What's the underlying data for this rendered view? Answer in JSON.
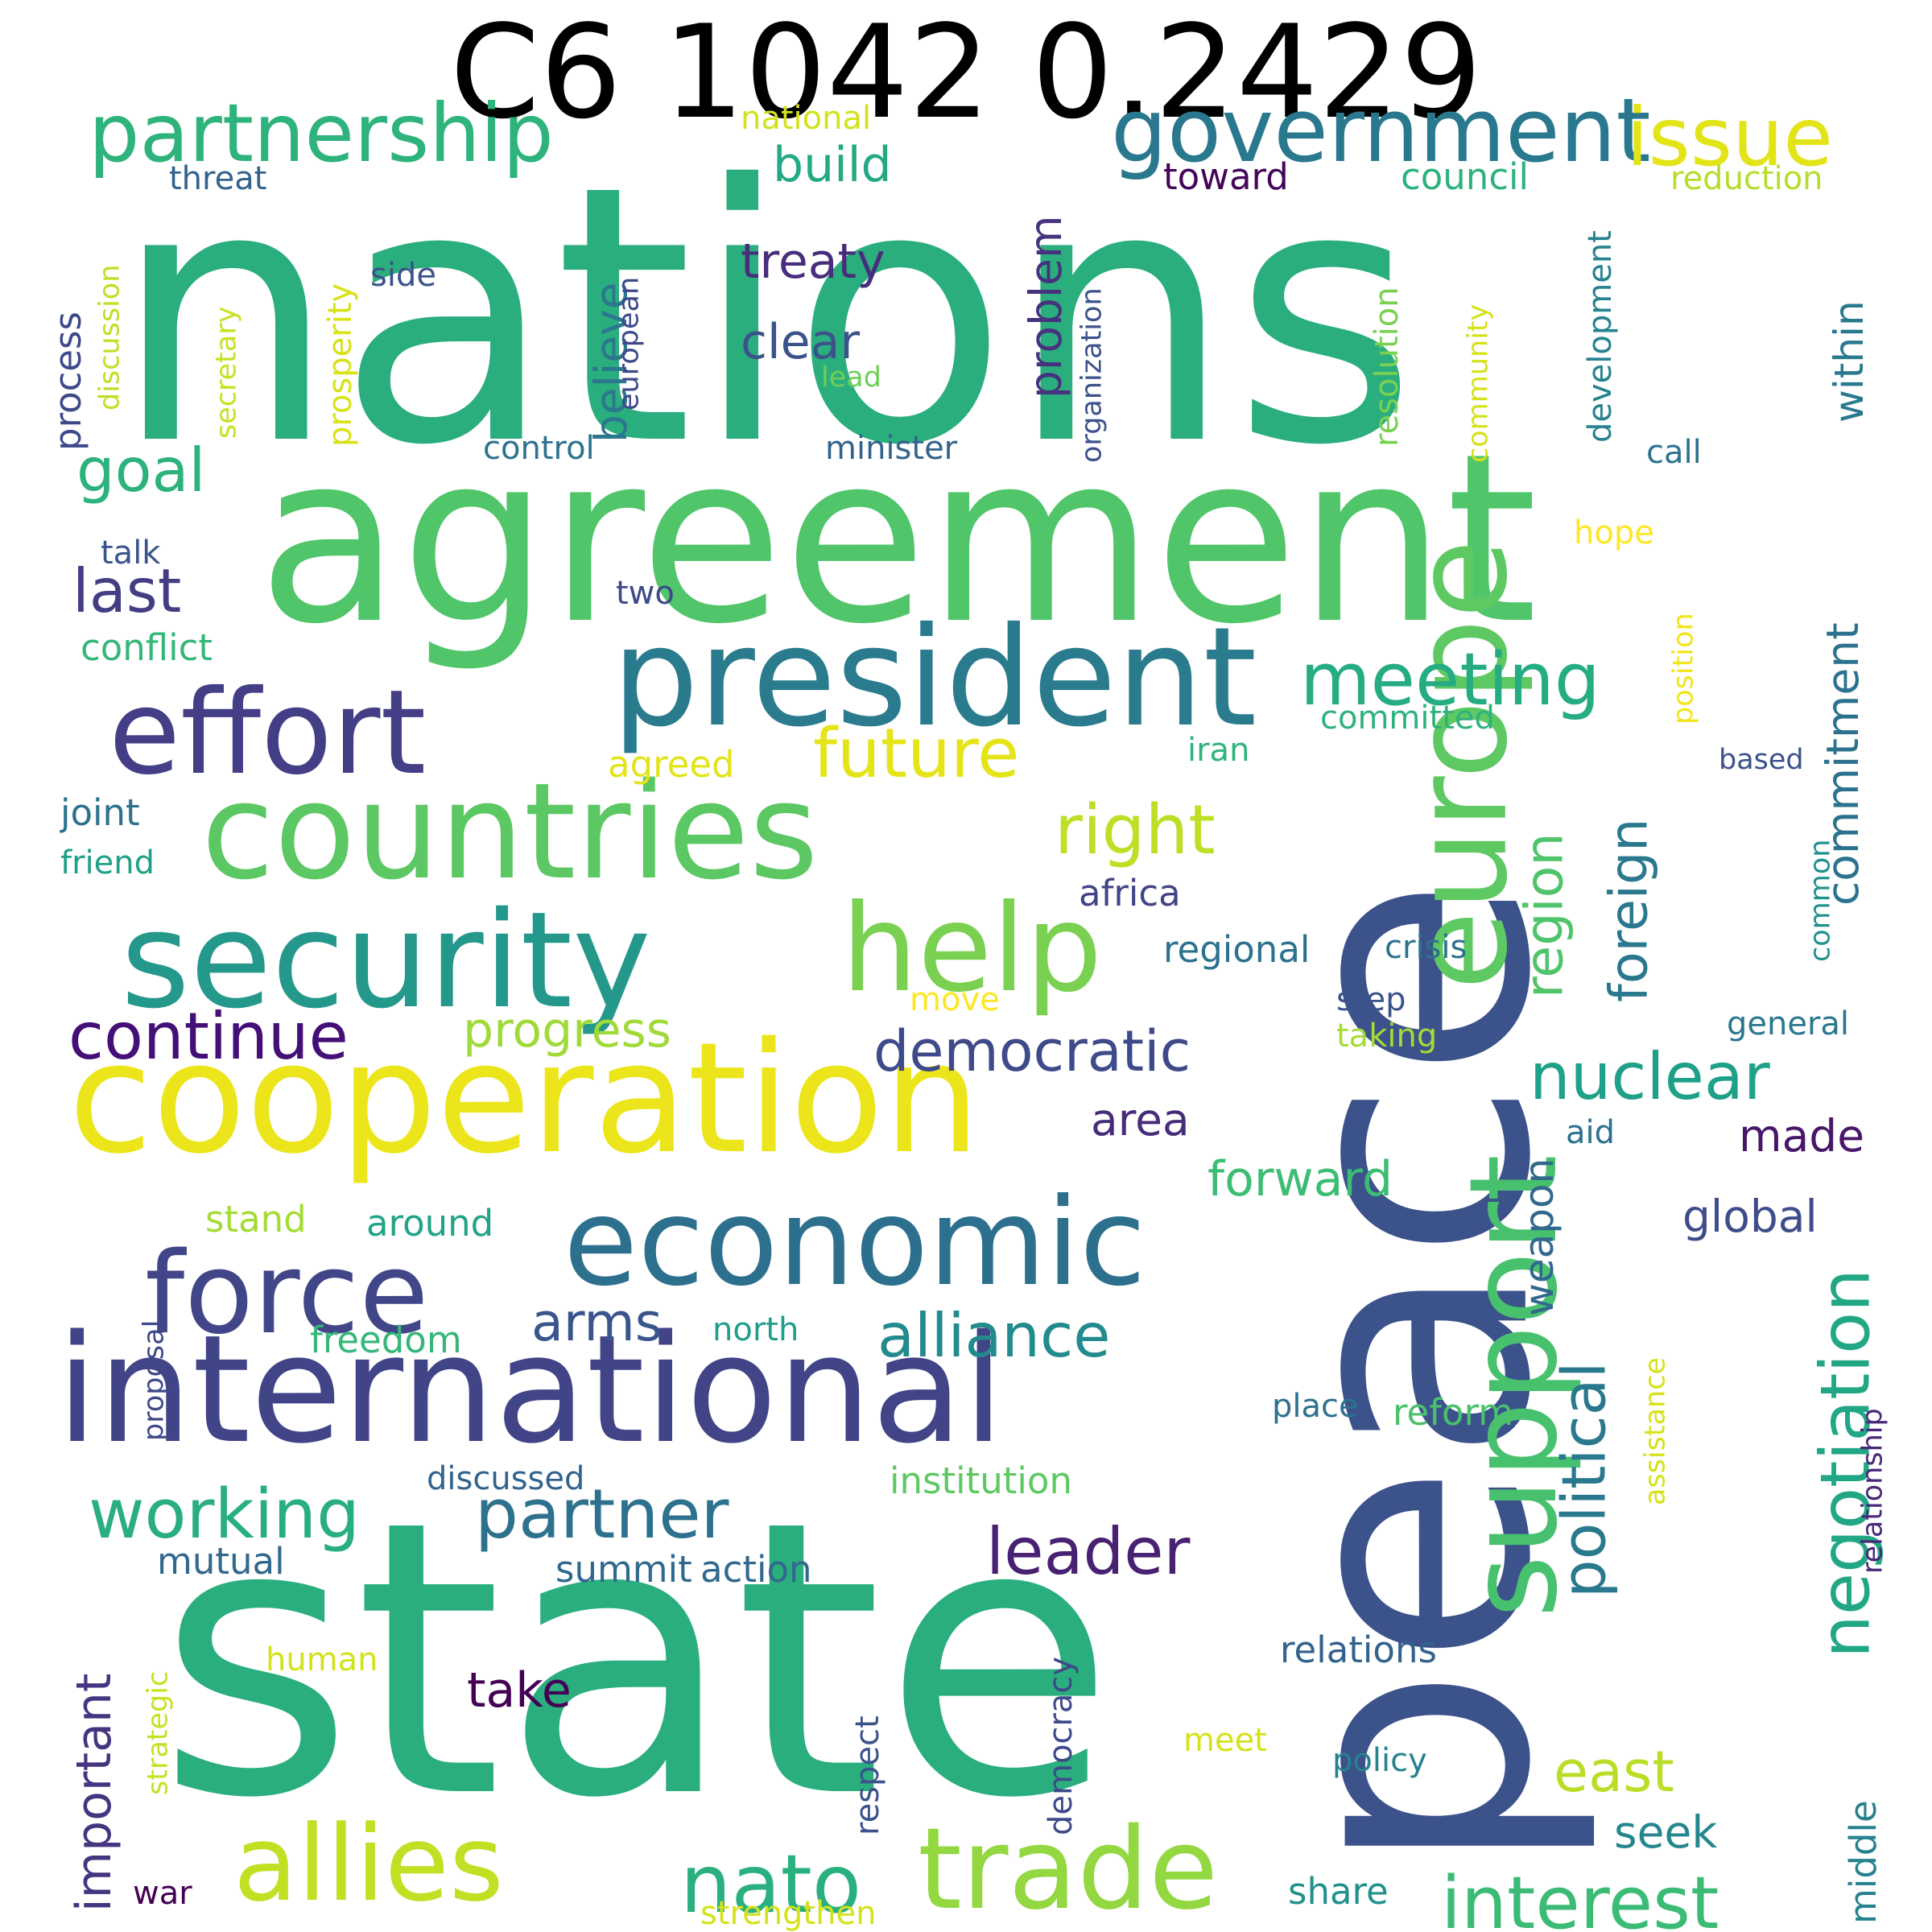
{
  "title": "C6 1042 0.2429",
  "palette": [
    "#440154",
    "#482878",
    "#3e4989",
    "#31688e",
    "#26828e",
    "#1f9e89",
    "#35b779",
    "#6ece58",
    "#b5de2b",
    "#fde725"
  ],
  "words": [
    {
      "text": "nations",
      "color": "#2aae7e"
    },
    {
      "text": "state",
      "color": "#2aae7e"
    },
    {
      "text": "peace",
      "color": "#3b528b"
    },
    {
      "text": "agreement",
      "color": "#51c56a"
    },
    {
      "text": "president",
      "color": "#2b7b8e"
    },
    {
      "text": "cooperation",
      "color": "#ede51b"
    },
    {
      "text": "international",
      "color": "#414487"
    },
    {
      "text": "countries",
      "color": "#5cc863"
    },
    {
      "text": "security",
      "color": "#24988a"
    },
    {
      "text": "effort",
      "color": "#433e85"
    },
    {
      "text": "economic",
      "color": "#2d708e"
    },
    {
      "text": "europe",
      "color": "#5ec962"
    },
    {
      "text": "support",
      "color": "#48c16e"
    },
    {
      "text": "help",
      "color": "#7ad151"
    },
    {
      "text": "force",
      "color": "#404688"
    },
    {
      "text": "trade",
      "color": "#93d741"
    },
    {
      "text": "allies",
      "color": "#c2df23"
    },
    {
      "text": "government",
      "color": "#2a788e"
    },
    {
      "text": "partnership",
      "color": "#2eb37c"
    },
    {
      "text": "issue",
      "color": "#e2e418"
    },
    {
      "text": "nato",
      "color": "#2ab07f"
    },
    {
      "text": "interest",
      "color": "#3bbb75"
    },
    {
      "text": "working",
      "color": "#28ae80"
    },
    {
      "text": "partner",
      "color": "#2d718e"
    },
    {
      "text": "meeting",
      "color": "#25ac82"
    },
    {
      "text": "future",
      "color": "#e5e419"
    },
    {
      "text": "right",
      "color": "#bddf26"
    },
    {
      "text": "leader",
      "color": "#482173"
    },
    {
      "text": "negotiation",
      "color": "#22a785"
    },
    {
      "text": "political",
      "color": "#2a788e"
    },
    {
      "text": "democratic",
      "color": "#3e4a89"
    },
    {
      "text": "continue",
      "color": "#440f76"
    },
    {
      "text": "nuclear",
      "color": "#1fa088"
    },
    {
      "text": "alliance",
      "color": "#238a8d"
    },
    {
      "text": "region",
      "color": "#50c46a"
    },
    {
      "text": "foreign",
      "color": "#2a788e"
    },
    {
      "text": "commitment",
      "color": "#2c728e"
    },
    {
      "text": "last",
      "color": "#433d84"
    },
    {
      "text": "goal",
      "color": "#2db27d"
    },
    {
      "text": "progress",
      "color": "#a0da39"
    },
    {
      "text": "forward",
      "color": "#3dbc74"
    },
    {
      "text": "arms",
      "color": "#39558c"
    },
    {
      "text": "east",
      "color": "#bade28"
    },
    {
      "text": "important",
      "color": "#453581"
    },
    {
      "text": "build",
      "color": "#23a983"
    },
    {
      "text": "treaty",
      "color": "#472d7b"
    },
    {
      "text": "clear",
      "color": "#3b528b"
    },
    {
      "text": "believe",
      "color": "#2a778e"
    },
    {
      "text": "problem",
      "color": "#46327e"
    },
    {
      "text": "within",
      "color": "#29798e"
    },
    {
      "text": "area",
      "color": "#472c7a"
    },
    {
      "text": "made",
      "color": "#481769"
    },
    {
      "text": "global",
      "color": "#3e4c8a"
    },
    {
      "text": "take",
      "color": "#440154"
    },
    {
      "text": "seek",
      "color": "#24878e"
    },
    {
      "text": "middle",
      "color": "#26828e"
    },
    {
      "text": "weapon",
      "color": "#31688e"
    },
    {
      "text": "process",
      "color": "#3e4989"
    },
    {
      "text": "prosperity",
      "color": "#d8e219"
    },
    {
      "text": "council",
      "color": "#2db27d"
    },
    {
      "text": "toward",
      "color": "#450559"
    },
    {
      "text": "national",
      "color": "#d2e21b"
    },
    {
      "text": "reduction",
      "color": "#b5de2b"
    },
    {
      "text": "threat",
      "color": "#33638d"
    },
    {
      "text": "side",
      "color": "#3b528b"
    },
    {
      "text": "resolution",
      "color": "#7ad151"
    },
    {
      "text": "organization",
      "color": "#3b528b"
    },
    {
      "text": "european",
      "color": "#3e4989"
    },
    {
      "text": "development",
      "color": "#26828e"
    },
    {
      "text": "community",
      "color": "#d5e21a"
    },
    {
      "text": "secretary",
      "color": "#c8e020"
    },
    {
      "text": "discussion",
      "color": "#c0df25"
    },
    {
      "text": "lead",
      "color": "#6ece58"
    },
    {
      "text": "control",
      "color": "#2c728e"
    },
    {
      "text": "minister",
      "color": "#33638d"
    },
    {
      "text": "call",
      "color": "#2c728e"
    },
    {
      "text": "talk",
      "color": "#39558c"
    },
    {
      "text": "two",
      "color": "#3e4989"
    },
    {
      "text": "hope",
      "color": "#fde725"
    },
    {
      "text": "position",
      "color": "#f1e51d"
    },
    {
      "text": "conflict",
      "color": "#35b779"
    },
    {
      "text": "committed",
      "color": "#2db27d"
    },
    {
      "text": "iran",
      "color": "#2eb37c"
    },
    {
      "text": "based",
      "color": "#3b528b"
    },
    {
      "text": "agreed",
      "color": "#e2e418"
    },
    {
      "text": "joint",
      "color": "#2c728e"
    },
    {
      "text": "friend",
      "color": "#1fa088"
    },
    {
      "text": "africa",
      "color": "#414487"
    },
    {
      "text": "common",
      "color": "#21918c"
    },
    {
      "text": "regional",
      "color": "#2c728e"
    },
    {
      "text": "crisis",
      "color": "#2c728e"
    },
    {
      "text": "move",
      "color": "#fde725"
    },
    {
      "text": "step",
      "color": "#3b528b"
    },
    {
      "text": "general",
      "color": "#2a788e"
    },
    {
      "text": "taking",
      "color": "#a5db36"
    },
    {
      "text": "aid",
      "color": "#2c728e"
    },
    {
      "text": "stand",
      "color": "#a5db36"
    },
    {
      "text": "around",
      "color": "#20a386"
    },
    {
      "text": "proposal",
      "color": "#3e4989"
    },
    {
      "text": "relationship",
      "color": "#482878"
    },
    {
      "text": "freedom",
      "color": "#35b779"
    },
    {
      "text": "north",
      "color": "#1f9e89"
    },
    {
      "text": "assistance",
      "color": "#d5e21a"
    },
    {
      "text": "place",
      "color": "#2c728e"
    },
    {
      "text": "reform",
      "color": "#4ac16d"
    },
    {
      "text": "discussed",
      "color": "#33638d"
    },
    {
      "text": "institution",
      "color": "#5ec962"
    },
    {
      "text": "mutual",
      "color": "#31688e"
    },
    {
      "text": "summit",
      "color": "#31688e"
    },
    {
      "text": "action",
      "color": "#31688e"
    },
    {
      "text": "strategic",
      "color": "#c8e020"
    },
    {
      "text": "human",
      "color": "#d2e21b"
    },
    {
      "text": "democracy",
      "color": "#3e4989"
    },
    {
      "text": "relations",
      "color": "#33638d"
    },
    {
      "text": "respect",
      "color": "#3b528b"
    },
    {
      "text": "meet",
      "color": "#d5e21a"
    },
    {
      "text": "policy",
      "color": "#26828e"
    },
    {
      "text": "war",
      "color": "#440154"
    },
    {
      "text": "strengthen",
      "color": "#d5e21a"
    },
    {
      "text": "share",
      "color": "#21918c"
    }
  ]
}
